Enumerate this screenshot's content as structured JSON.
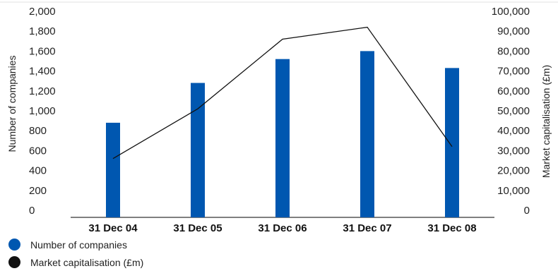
{
  "chart_data": {
    "type": "bar+line",
    "categories": [
      "31 Dec 04",
      "31 Dec 05",
      "31 Dec 06",
      "31 Dec 07",
      "31 Dec 08"
    ],
    "series": [
      {
        "name": "Number of companies",
        "type": "bar",
        "axis": "left",
        "color": "#0057b0",
        "values": [
          880,
          1280,
          1520,
          1600,
          1430
        ]
      },
      {
        "name": "Market capitalisation (£m)",
        "type": "line",
        "axis": "right",
        "color": "#111111",
        "values": [
          26000,
          51000,
          86000,
          92000,
          32000
        ]
      }
    ],
    "y_left": {
      "label": "Number of companies",
      "ylim": [
        0,
        2000
      ],
      "ticks": [
        "0",
        "200",
        "400",
        "600",
        "800",
        "1,000",
        "1,200",
        "1,400",
        "1,600",
        "1,800",
        "2,000"
      ]
    },
    "y_right": {
      "label": "Market capitalisation (£m)",
      "ylim": [
        0,
        100000
      ],
      "ticks": [
        "0",
        "10,000",
        "20,000",
        "30,000",
        "40,000",
        "50,000",
        "60,000",
        "70,000",
        "80,000",
        "90,000",
        "100,000"
      ]
    },
    "grid": false,
    "legend": "bottom-left"
  },
  "legend": {
    "items": [
      {
        "label": "Number of companies",
        "color": "#0057b0"
      },
      {
        "label": "Market capitalisation (£m)",
        "color": "#111111"
      }
    ]
  }
}
